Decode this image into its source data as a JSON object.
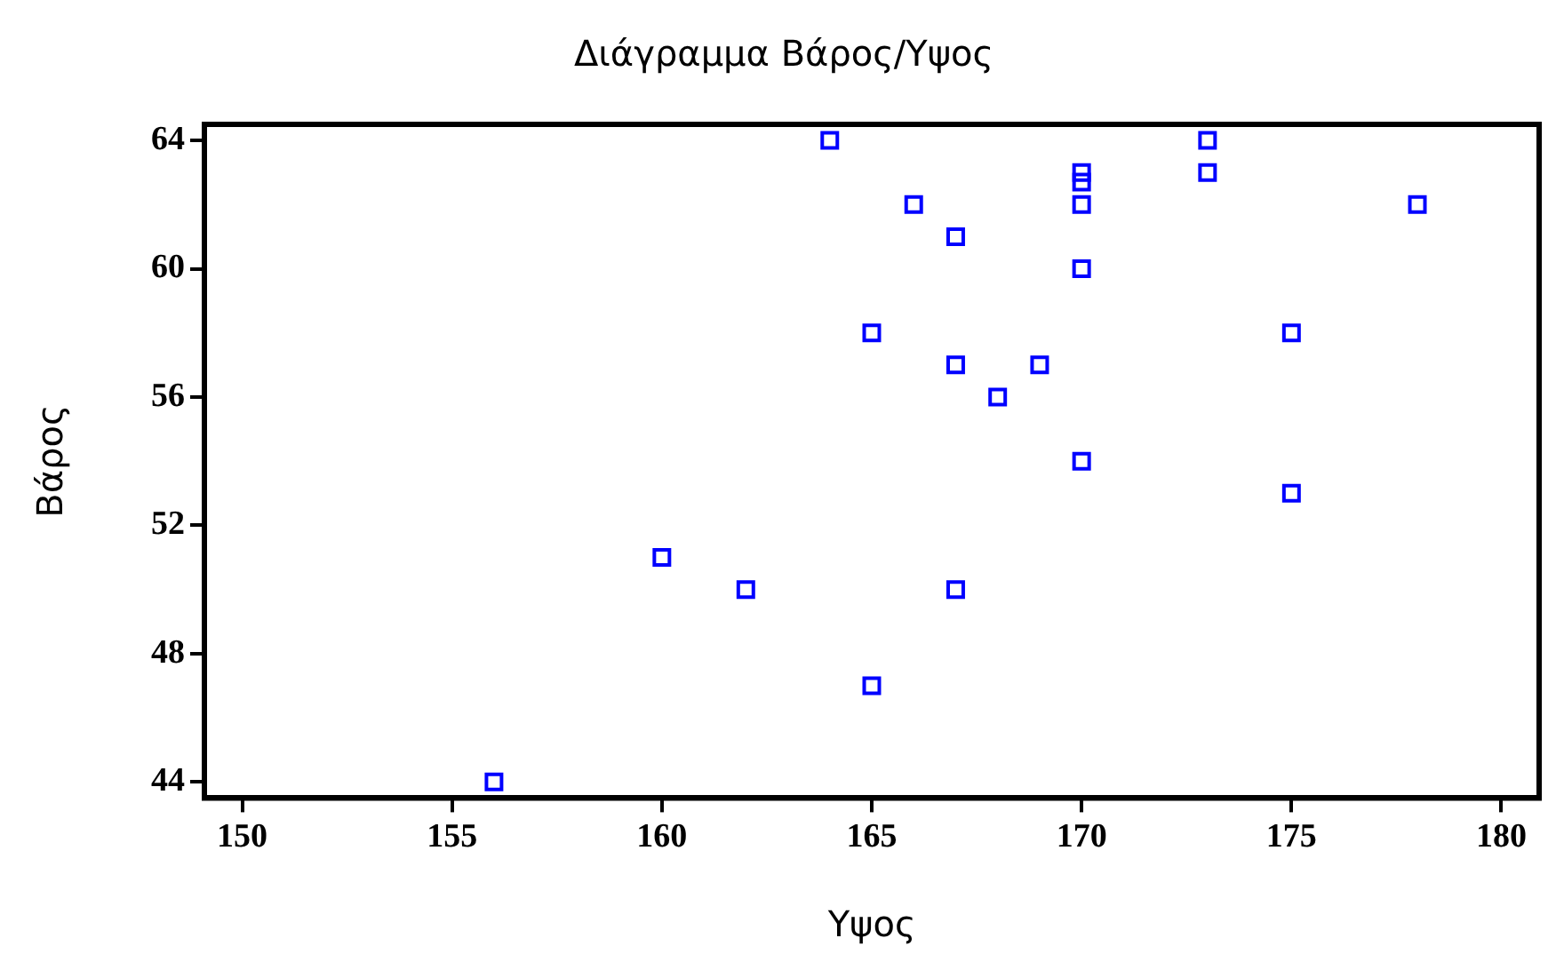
{
  "chart_data": {
    "type": "scatter",
    "title": "Διάγραμμα Βάρος/Υψος",
    "xlabel": "Υψος",
    "ylabel": "Βάρος",
    "x": [
      156,
      160,
      162,
      164,
      165,
      165,
      166,
      167,
      167,
      167,
      168,
      169,
      170,
      170,
      170,
      170,
      170,
      173,
      173,
      175,
      175,
      178
    ],
    "series": [
      {
        "color": "#0000ff",
        "values": [
          44,
          51,
          50,
          64,
          58,
          47,
          62,
          61,
          57,
          50,
          56,
          57,
          63,
          62.7,
          62,
          60,
          54,
          64,
          63,
          58,
          53,
          62
        ]
      }
    ],
    "xlim": [
      149.1,
      180.9
    ],
    "xticks": [
      150,
      155,
      160,
      165,
      170,
      175,
      180
    ],
    "ylim": [
      43.5,
      64.5
    ],
    "yticks": [
      44,
      48,
      52,
      56,
      60,
      64
    ],
    "marker": "square",
    "grid": false,
    "legend": false
  }
}
